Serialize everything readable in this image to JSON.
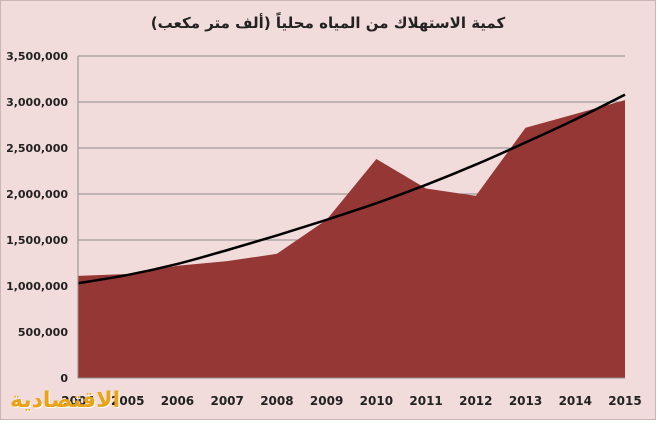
{
  "chart_data": {
    "type": "area",
    "title": "كمية الاستهلاك من المياه محلياً (ألف متر مكعب)",
    "xlabel": "",
    "ylabel": "",
    "x": [
      "2004",
      "2005",
      "2006",
      "2007",
      "2008",
      "2009",
      "2010",
      "2011",
      "2012",
      "2013",
      "2014",
      "2015"
    ],
    "ylim": [
      0,
      3500000
    ],
    "yticks": [
      "0",
      "500,000",
      "1,000,000",
      "1,500,000",
      "2,000,000",
      "2,500,000",
      "3,000,000",
      "3,500,000"
    ],
    "yticks_values": [
      0,
      500000,
      1000000,
      1500000,
      2000000,
      2500000,
      3000000,
      3500000
    ],
    "series": [
      {
        "values": [
          1110000,
          1130000,
          1220000,
          1270000,
          1350000,
          1720000,
          2380000,
          2060000,
          1980000,
          2720000,
          2870000,
          3020000
        ]
      }
    ],
    "trendline": {
      "values": [
        1030000,
        1120000,
        1240000,
        1390000,
        1550000,
        1720000,
        1900000,
        2100000,
        2320000,
        2560000,
        2810000,
        3080000
      ]
    },
    "grid": true,
    "legend": "none",
    "colors": {
      "area": "#953735",
      "trendline": "#000000",
      "background": "#f2dcdb",
      "gridline": "#8c8c8c"
    }
  },
  "logo_text": "الاقتصادية"
}
